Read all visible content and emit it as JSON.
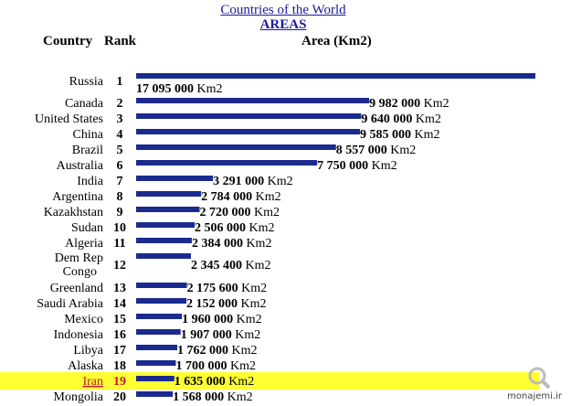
{
  "page": {
    "title": "Countries of the World",
    "subtitle": "AREAS",
    "headers": {
      "country": "Country",
      "rank": "Rank",
      "area": "Area (Km2)"
    },
    "watermark": "monajemi.ir"
  },
  "colors": {
    "bar": "#1b2a8f",
    "highlight": "#ffff33",
    "highlight_text": "#c0182a"
  },
  "chart_data": {
    "type": "bar",
    "orientation": "horizontal",
    "title": "Countries of the World",
    "subtitle": "AREAS",
    "xlabel": "Area (Km2)",
    "unit": "Km2",
    "grid": false,
    "legend": "none",
    "xlim": [
      0,
      17095000
    ],
    "highlight": "Iran",
    "categories": [
      "Russia",
      "Canada",
      "United States",
      "China",
      "Brazil",
      "Australia",
      "India",
      "Argentina",
      "Kazakhstan",
      "Sudan",
      "Algeria",
      "Dem Rep Congo",
      "Greenland",
      "Saudi Arabia",
      "Mexico",
      "Indonesia",
      "Libya",
      "Alaska",
      "Iran",
      "Mongolia"
    ],
    "ranks": [
      1,
      2,
      3,
      4,
      5,
      6,
      7,
      8,
      9,
      10,
      11,
      12,
      13,
      14,
      15,
      16,
      17,
      18,
      19,
      20
    ],
    "values": [
      17095000,
      9982000,
      9640000,
      9585000,
      8557000,
      7750000,
      3291000,
      2784000,
      2720000,
      2506000,
      2384000,
      2345400,
      2175600,
      2152000,
      1960000,
      1907000,
      1762000,
      1700000,
      1635000,
      1568000
    ],
    "labels": [
      "17 095 000 Km2",
      "9 982 000 Km2",
      "9 640 000 Km2",
      "9 585 000 Km2",
      "8 557 000 Km2",
      "7 750 000 Km2",
      "3 291 000 Km2",
      "2 784 000 Km2",
      "2 720 000 Km2",
      "2 506 000 Km2",
      "2 384 000 Km2",
      "2 345 400 Km2",
      "2 175 600 Km2",
      "2 152 000 Km2",
      "1 960 000 Km2",
      "1 907 000 Km2",
      "1 762 000 Km2",
      "1 700 000 Km2",
      "1 635 000 Km2",
      "1 568 000 Km2"
    ]
  }
}
